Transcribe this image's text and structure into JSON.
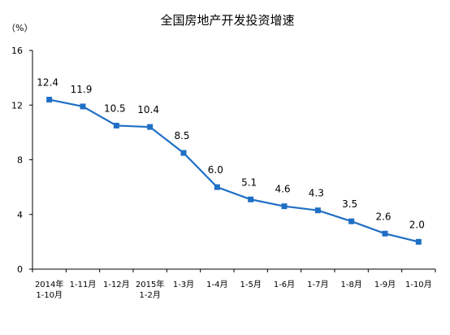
{
  "chart_data": {
    "type": "line",
    "title": "全国房地产开发投资增速",
    "unit_label": "（%）",
    "categories": [
      [
        "2014年",
        "1-10月"
      ],
      [
        "1-11月"
      ],
      [
        "1-12月"
      ],
      [
        "2015年",
        "1-2月"
      ],
      [
        "1-3月"
      ],
      [
        "1-4月"
      ],
      [
        "1-5月"
      ],
      [
        "1-6月"
      ],
      [
        "1-7月"
      ],
      [
        "1-8月"
      ],
      [
        "1-9月"
      ],
      [
        "1-10月"
      ]
    ],
    "values": [
      12.4,
      11.9,
      10.5,
      10.4,
      8.5,
      6.0,
      5.1,
      4.6,
      4.3,
      3.5,
      2.6,
      2.0
    ],
    "value_labels": [
      "12.4",
      "11.9",
      "10.5",
      "10.4",
      "8.5",
      "6.0",
      "5.1",
      "4.6",
      "4.3",
      "3.5",
      "2.6",
      "2.0"
    ],
    "ylim": [
      0,
      16
    ],
    "yticks": [
      0,
      4,
      8,
      12,
      16
    ],
    "grid": false,
    "line_color": "#1f6fc5",
    "marker": "square"
  }
}
